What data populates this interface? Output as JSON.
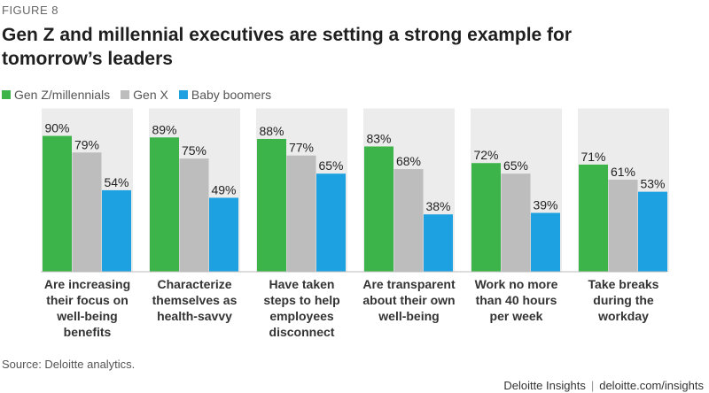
{
  "figure_label": "FIGURE 8",
  "source": "Source: Deloitte analytics.",
  "footer": {
    "brand": "Deloitte Insights",
    "separator": "|",
    "url": "deloitte.com/insights"
  },
  "chart_data": {
    "type": "bar",
    "title": "Gen Z and millennial executives are setting a strong example for tomorrow’s leaders",
    "legend_position": "top-left",
    "grid": false,
    "ylim": [
      0,
      100
    ],
    "categories": [
      "Are increasing their focus on well-being benefits",
      "Characterize themselves as health-savvy",
      "Have taken steps to help employees disconnect",
      "Are transparent about their own well-being",
      "Work no more than 40 hours per week",
      "Take breaks during the workday"
    ],
    "category_lines": [
      [
        "Are increasing",
        "their focus on",
        "well-being",
        "benefits"
      ],
      [
        "Characterize",
        "themselves as",
        "health-savvy"
      ],
      [
        "Have taken",
        "steps to help",
        "employees",
        "disconnect"
      ],
      [
        "Are transparent",
        "about their own",
        "well-being"
      ],
      [
        "Work no more",
        "than 40 hours",
        "per week"
      ],
      [
        "Take breaks",
        "during the",
        "workday"
      ]
    ],
    "series": [
      {
        "name": "Gen Z/millennials",
        "color": "#3cb44a",
        "values": [
          90,
          89,
          88,
          83,
          72,
          71
        ]
      },
      {
        "name": "Gen X",
        "color": "#bdbdbd",
        "values": [
          79,
          75,
          77,
          68,
          65,
          61
        ]
      },
      {
        "name": "Baby boomers",
        "color": "#1ea1e0",
        "values": [
          54,
          49,
          65,
          38,
          39,
          53
        ]
      }
    ],
    "value_suffix": "%",
    "panel_color": "#ececec"
  }
}
